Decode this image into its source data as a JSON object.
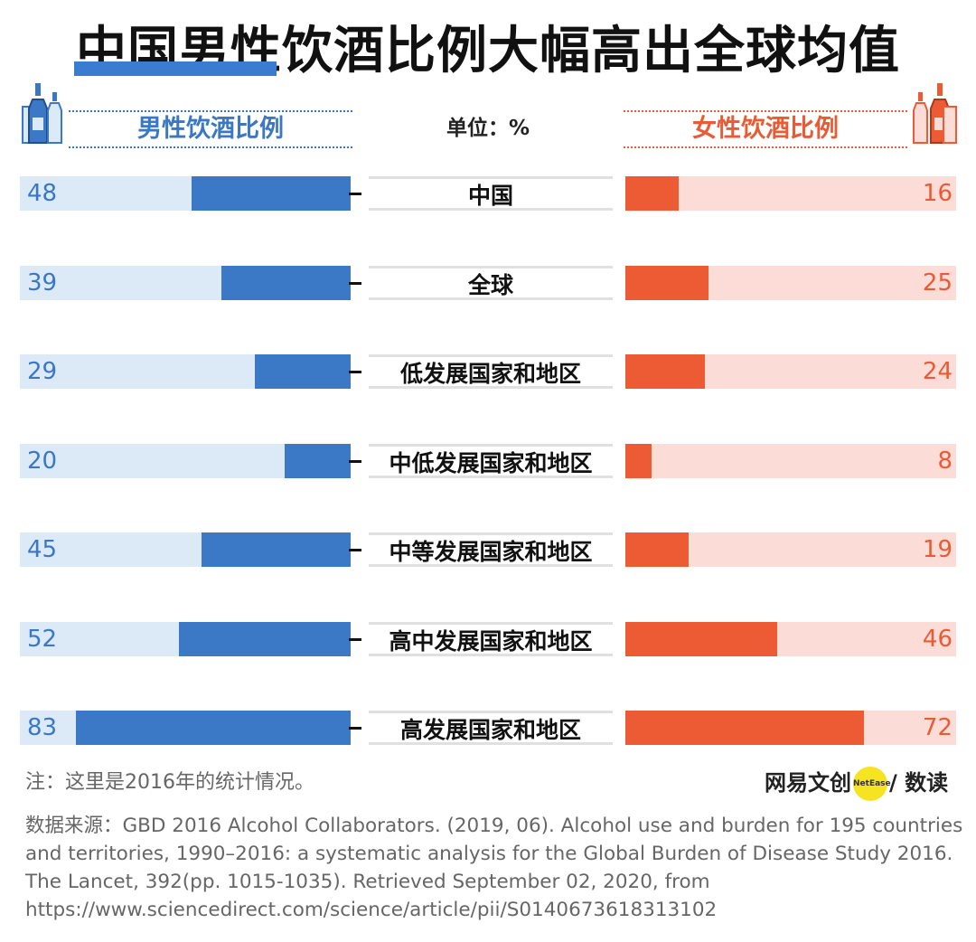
{
  "title": "中国男性饮酒比例大幅高出全球均值",
  "legend": {
    "male": "男性饮酒比例",
    "female": "女性饮酒比例",
    "unit": "单位：%"
  },
  "colors": {
    "male": "#3b78c6",
    "male_bg": "#dce9f7",
    "female": "#ec5b34",
    "female_bg": "#fbdcd6"
  },
  "chart_data": {
    "type": "bar",
    "orientation": "horizontal-butterfly",
    "categories": [
      "中国",
      "全球",
      "低发展国家和地区",
      "中低发展国家和地区",
      "中等发展国家和地区",
      "高中发展国家和地区",
      "高发展国家和地区"
    ],
    "series": [
      {
        "name": "男性饮酒比例",
        "values": [
          48,
          39,
          29,
          20,
          45,
          52,
          83
        ]
      },
      {
        "name": "女性饮酒比例",
        "values": [
          16,
          25,
          24,
          8,
          19,
          46,
          72
        ]
      }
    ],
    "xlim": [
      0,
      100
    ],
    "unit": "%",
    "grid": false
  },
  "note": "注：这里是2016年的统计情况。",
  "brand": {
    "left": "网易文创",
    "badge": "NetEase",
    "right": "/ 数读"
  },
  "source": "数据来源：GBD 2016 Alcohol Collaborators. (2019, 06). Alcohol use and burden for 195 countries and territories, 1990–2016: a systematic analysis for the Global Burden of Disease Study 2016. The Lancet, 392(pp. 1015-1035).  Retrieved September 02, 2020, from https://www.sciencedirect.com/science/article/pii/S0140673618313102"
}
